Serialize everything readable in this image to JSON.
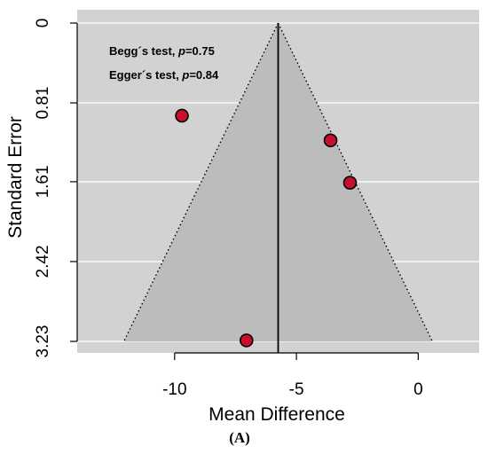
{
  "chart_data": {
    "type": "scatter",
    "subtype": "funnel",
    "xlabel": "Mean Difference",
    "ylabel": "Standard Error",
    "x_ticks": [
      -10,
      -5,
      0
    ],
    "x_tick_labels": [
      "-10",
      "-5",
      "0"
    ],
    "y_ticks": [
      0,
      0.81,
      1.61,
      2.42,
      3.23
    ],
    "y_tick_labels": [
      "0",
      "0.81",
      "1.61",
      "2.42",
      "3.23"
    ],
    "xlim": [
      -14,
      2.5
    ],
    "ylim": [
      3.23,
      0
    ],
    "y_reversed": true,
    "grid": "horizontal",
    "pooled_estimate": -5.75,
    "ci_multiplier": 1.96,
    "points": [
      {
        "x": -9.7,
        "y": 0.94
      },
      {
        "x": -3.6,
        "y": 1.19
      },
      {
        "x": -2.8,
        "y": 1.62
      },
      {
        "x": -7.05,
        "y": 3.22
      }
    ],
    "annotations": [
      {
        "prefix": "Begg´s test, ",
        "p_label": "p",
        "suffix": "=0.75"
      },
      {
        "prefix": "Egger´s test, ",
        "p_label": "p",
        "suffix": "=0.84"
      }
    ],
    "colors": {
      "panel_bg": "#d2d2d2",
      "funnel_fill": "#bcbcbc",
      "point_fill": "#c8102e",
      "gridline": "#ffffff"
    }
  },
  "caption": "(A)"
}
